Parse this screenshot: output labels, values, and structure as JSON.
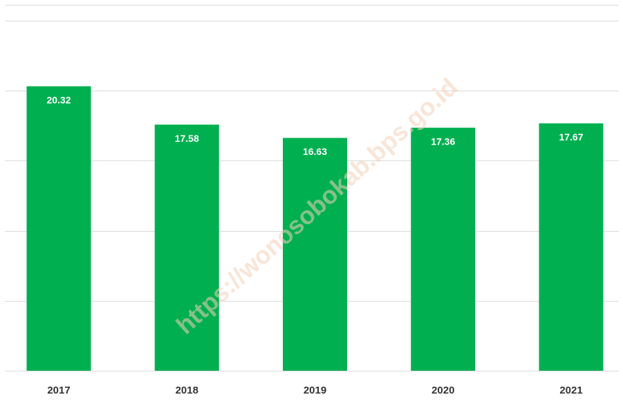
{
  "chart_data": {
    "type": "bar",
    "categories": [
      "2017",
      "2018",
      "2019",
      "2020",
      "2021"
    ],
    "values": [
      20.32,
      17.58,
      16.63,
      17.36,
      17.67
    ],
    "color": "#00b050",
    "ylim": [
      0,
      25
    ],
    "yticks": [
      0,
      5,
      10,
      15,
      20,
      25
    ],
    "grid": true,
    "watermark": "https://wonosobokab.bps.go.id"
  }
}
